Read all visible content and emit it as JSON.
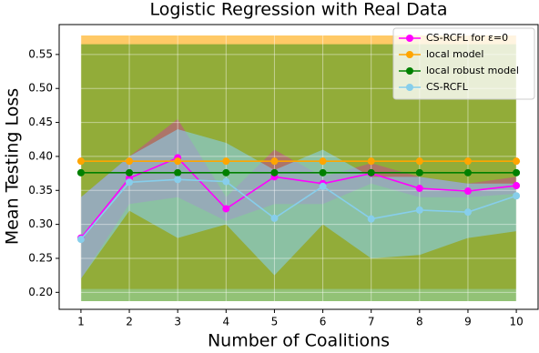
{
  "chart_data": {
    "type": "line",
    "title": "Logistic Regression with Real Data",
    "xlabel": "Number of Coalitions",
    "ylabel": "Mean Testing Loss",
    "x": [
      1,
      2,
      3,
      4,
      5,
      6,
      7,
      8,
      9,
      10
    ],
    "xlim": [
      0.55,
      10.45
    ],
    "xticks": [
      1,
      2,
      3,
      4,
      5,
      6,
      7,
      8,
      9,
      10
    ],
    "ylim": [
      0.175,
      0.594
    ],
    "yticks": [
      {
        "value": 0.2,
        "label": "0.20"
      },
      {
        "value": 0.25,
        "label": "0.25"
      },
      {
        "value": 0.3,
        "label": "0.30"
      },
      {
        "value": 0.35,
        "label": "0.35"
      },
      {
        "value": 0.4,
        "label": "0.40"
      },
      {
        "value": 0.45,
        "label": "0.45"
      },
      {
        "value": 0.5,
        "label": "0.50"
      },
      {
        "value": 0.55,
        "label": "0.55"
      }
    ],
    "grid": true,
    "legend": "upper right",
    "series": [
      {
        "name": "CS-RCFL for ε=0",
        "color": "#ff00ff",
        "band_color": "#c0508a",
        "values": [
          0.28,
          0.368,
          0.398,
          0.323,
          0.37,
          0.36,
          0.375,
          0.353,
          0.349,
          0.357
        ],
        "upper": [
          0.34,
          0.4,
          0.455,
          0.34,
          0.41,
          0.37,
          0.39,
          0.37,
          0.36,
          0.37
        ],
        "lower": [
          0.22,
          0.33,
          0.34,
          0.305,
          0.33,
          0.33,
          0.36,
          0.34,
          0.34,
          0.345
        ]
      },
      {
        "name": "local model",
        "color": "#ffa500",
        "band_color": "#ffa500",
        "values": [
          0.393,
          0.393,
          0.393,
          0.393,
          0.393,
          0.393,
          0.393,
          0.393,
          0.393,
          0.393
        ],
        "upper": [
          0.578,
          0.578,
          0.578,
          0.578,
          0.578,
          0.578,
          0.578,
          0.578,
          0.578,
          0.578
        ],
        "lower": [
          0.205,
          0.205,
          0.205,
          0.205,
          0.205,
          0.205,
          0.205,
          0.205,
          0.205,
          0.205
        ]
      },
      {
        "name": "local robust model",
        "color": "#008000",
        "band_color": "#4a9a1a",
        "values": [
          0.376,
          0.376,
          0.376,
          0.376,
          0.376,
          0.376,
          0.376,
          0.376,
          0.376,
          0.376
        ],
        "upper": [
          0.565,
          0.565,
          0.565,
          0.565,
          0.565,
          0.565,
          0.565,
          0.565,
          0.565,
          0.565
        ],
        "lower": [
          0.187,
          0.187,
          0.187,
          0.187,
          0.187,
          0.187,
          0.187,
          0.187,
          0.187,
          0.187
        ]
      },
      {
        "name": "CS-RCFL",
        "color": "#87ceeb",
        "band_color": "#87ceeb",
        "values": [
          0.278,
          0.362,
          0.366,
          0.363,
          0.309,
          0.356,
          0.308,
          0.321,
          0.318,
          0.342
        ],
        "upper": [
          0.34,
          0.4,
          0.44,
          0.42,
          0.38,
          0.41,
          0.37,
          0.37,
          0.36,
          0.36
        ],
        "lower": [
          0.22,
          0.32,
          0.28,
          0.3,
          0.225,
          0.3,
          0.25,
          0.255,
          0.28,
          0.29
        ]
      }
    ]
  }
}
